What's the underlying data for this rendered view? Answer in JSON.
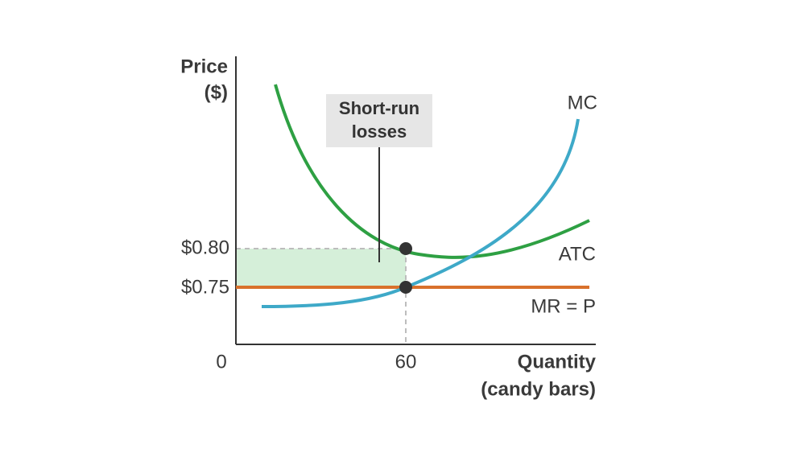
{
  "axes": {
    "y_label": [
      "Price",
      "($)"
    ],
    "x_label": [
      "Quantity",
      "(candy bars)"
    ],
    "origin": "0"
  },
  "y_ticks": [
    "$0.80",
    "$0.75"
  ],
  "x_ticks": [
    "60"
  ],
  "curves": {
    "mc": "MC",
    "atc": "ATC",
    "mr": "MR = P"
  },
  "annotation": [
    "Short-run",
    "losses"
  ]
}
